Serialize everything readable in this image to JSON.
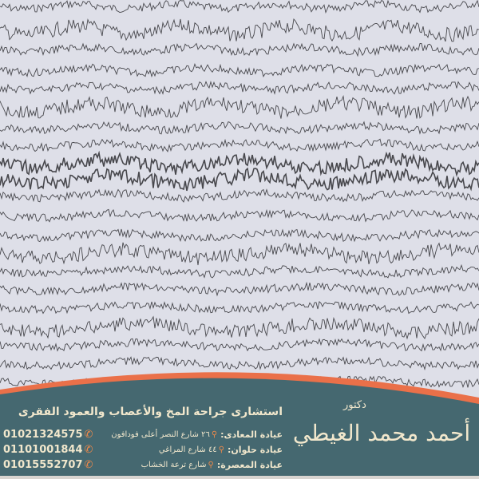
{
  "colors": {
    "panel": "#456870",
    "accent": "#ea7049",
    "text": "#f1e7cc",
    "background": "#dedfe8",
    "trace": "#222226"
  },
  "doctor": {
    "title": "دكتور",
    "name": "أحمد محمد الغيطي"
  },
  "subtitle": "استشارى جراحة المخ والأعصاب والعمود الفقرى",
  "clinics": [
    {
      "name": "عيادة المعادى:",
      "address": "٢٦ شارع النصر أعلى فودافون",
      "phone": "01021324575"
    },
    {
      "name": "عيادة حلوان:",
      "address": "٤٤ شارع المراغي",
      "phone": "01101001844"
    },
    {
      "name": "عيادة المعصرة:",
      "address": "شارع ترعة الخشاب",
      "phone": "01015552707"
    }
  ],
  "icons": {
    "location": "map-pin-icon",
    "phone": "phone-icon"
  }
}
